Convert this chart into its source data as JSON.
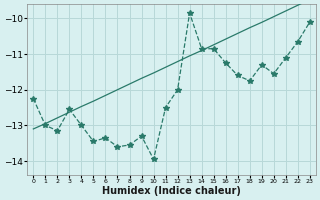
{
  "title": "",
  "xlabel": "Humidex (Indice chaleur)",
  "bg_color": "#d8f0f0",
  "grid_color": "#b8d8d8",
  "line_color": "#2a7a6a",
  "x_data": [
    0,
    1,
    2,
    3,
    4,
    5,
    6,
    7,
    8,
    9,
    10,
    11,
    12,
    13,
    14,
    15,
    16,
    17,
    18,
    19,
    20,
    21,
    22,
    23
  ],
  "y_jagged": [
    -12.25,
    -13.0,
    -13.15,
    -12.55,
    -13.0,
    -13.45,
    -13.35,
    -13.6,
    -13.55,
    -13.3,
    -13.95,
    -12.5,
    -12.0,
    -9.85,
    -10.85,
    -10.85,
    -11.25,
    -11.6,
    -11.75,
    -11.3,
    -11.55,
    -11.1,
    -10.65,
    -10.1
  ],
  "y_trend": [
    -13.1,
    -12.95,
    -12.79,
    -12.63,
    -12.47,
    -12.32,
    -12.16,
    -12.0,
    -11.84,
    -11.68,
    -11.53,
    -11.37,
    -11.21,
    -11.05,
    -10.9,
    -10.74,
    -10.58,
    -10.42,
    -10.26,
    -10.11,
    -9.95,
    -9.79,
    -9.63,
    -9.47
  ],
  "ylim": [
    -14.4,
    -9.6
  ],
  "xlim": [
    -0.5,
    23.5
  ],
  "yticks": [
    -14,
    -13,
    -12,
    -11,
    -10
  ],
  "xticks": [
    0,
    1,
    2,
    3,
    4,
    5,
    6,
    7,
    8,
    9,
    10,
    11,
    12,
    13,
    14,
    15,
    16,
    17,
    18,
    19,
    20,
    21,
    22,
    23
  ],
  "markersize": 4
}
